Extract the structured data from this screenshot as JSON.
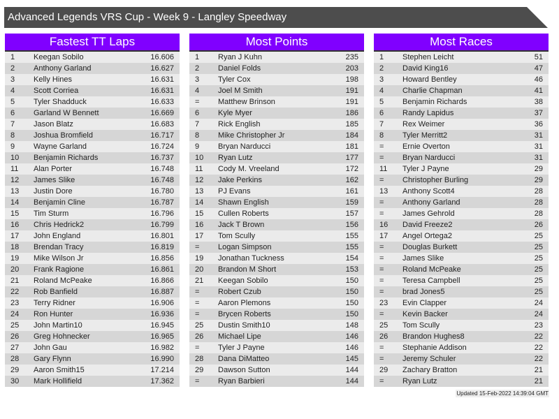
{
  "title": "Advanced Legends VRS Cup - Week 9 - Langley Speedway",
  "colors": {
    "title_bg": "#4d4d4d",
    "header_bg": "#8000ff"
  },
  "tables": [
    {
      "heading": "Fastest TT Laps",
      "rows": [
        [
          "1",
          "Keegan Sobilo",
          "16.606"
        ],
        [
          "2",
          "Anthony Garland",
          "16.627"
        ],
        [
          "3",
          "Kelly Hines",
          "16.631"
        ],
        [
          "4",
          "Scott Corriea",
          "16.631"
        ],
        [
          "5",
          "Tyler Shadduck",
          "16.633"
        ],
        [
          "6",
          "Garland W Bennett",
          "16.669"
        ],
        [
          "7",
          "Jason Blatz",
          "16.683"
        ],
        [
          "8",
          "Joshua Bromfield",
          "16.717"
        ],
        [
          "9",
          "Wayne Garland",
          "16.724"
        ],
        [
          "10",
          "Benjamin Richards",
          "16.737"
        ],
        [
          "11",
          "Alan Porter",
          "16.748"
        ],
        [
          "12",
          "James Slike",
          "16.748"
        ],
        [
          "13",
          "Justin Dore",
          "16.780"
        ],
        [
          "14",
          "Benjamin Cline",
          "16.787"
        ],
        [
          "15",
          "Tim Sturm",
          "16.796"
        ],
        [
          "16",
          "Chris Hedrick2",
          "16.799"
        ],
        [
          "17",
          "John England",
          "16.801"
        ],
        [
          "18",
          "Brendan Tracy",
          "16.819"
        ],
        [
          "19",
          "Mike Wilson Jr",
          "16.856"
        ],
        [
          "20",
          "Frank Ragione",
          "16.861"
        ],
        [
          "21",
          "Roland McPeake",
          "16.866"
        ],
        [
          "22",
          "Rob Banfield",
          "16.887"
        ],
        [
          "23",
          "Terry Ridner",
          "16.906"
        ],
        [
          "24",
          "Ron Hunter",
          "16.936"
        ],
        [
          "25",
          "John Martin10",
          "16.945"
        ],
        [
          "26",
          "Greg Hohnecker",
          "16.965"
        ],
        [
          "27",
          "John Gau",
          "16.982"
        ],
        [
          "28",
          "Gary Flynn",
          "16.990"
        ],
        [
          "29",
          "Aaron Smith15",
          "17.214"
        ],
        [
          "30",
          "Mark Hollifield",
          "17.362"
        ]
      ]
    },
    {
      "heading": "Most Points",
      "rows": [
        [
          "1",
          "Ryan J Kuhn",
          "235"
        ],
        [
          "2",
          "Daniel Folds",
          "203"
        ],
        [
          "3",
          "Tyler Cox",
          "198"
        ],
        [
          "4",
          "Joel M Smith",
          "191"
        ],
        [
          "=",
          "Matthew Brinson",
          "191"
        ],
        [
          "6",
          "Kyle Myer",
          "186"
        ],
        [
          "7",
          "Rick English",
          "185"
        ],
        [
          "8",
          "Mike Christopher Jr",
          "184"
        ],
        [
          "9",
          "Bryan Narducci",
          "181"
        ],
        [
          "10",
          "Ryan Lutz",
          "177"
        ],
        [
          "11",
          "Cody M. Vreeland",
          "172"
        ],
        [
          "12",
          "Jake Perkins",
          "162"
        ],
        [
          "13",
          "PJ Evans",
          "161"
        ],
        [
          "14",
          "Shawn English",
          "159"
        ],
        [
          "15",
          "Cullen Roberts",
          "157"
        ],
        [
          "16",
          "Jack T Brown",
          "156"
        ],
        [
          "17",
          "Tom Scully",
          "155"
        ],
        [
          "=",
          "Logan Simpson",
          "155"
        ],
        [
          "19",
          "Jonathan Tuckness",
          "154"
        ],
        [
          "20",
          "Brandon M Short",
          "153"
        ],
        [
          "21",
          "Keegan Sobilo",
          "150"
        ],
        [
          "=",
          "Robert Czub",
          "150"
        ],
        [
          "=",
          "Aaron Plemons",
          "150"
        ],
        [
          "=",
          "Brycen Roberts",
          "150"
        ],
        [
          "25",
          "Dustin Smith10",
          "148"
        ],
        [
          "26",
          "Michael Lipe",
          "146"
        ],
        [
          "=",
          "Tyler J Payne",
          "146"
        ],
        [
          "28",
          "Dana DiMatteo",
          "145"
        ],
        [
          "29",
          "Dawson Sutton",
          "144"
        ],
        [
          "=",
          "Ryan Barbieri",
          "144"
        ]
      ]
    },
    {
      "heading": "Most Races",
      "rows": [
        [
          "1",
          "Stephen Leicht",
          "51"
        ],
        [
          "2",
          "David King16",
          "47"
        ],
        [
          "3",
          "Howard Bentley",
          "46"
        ],
        [
          "4",
          "Charlie Chapman",
          "41"
        ],
        [
          "5",
          "Benjamin Richards",
          "38"
        ],
        [
          "6",
          "Randy Lapidus",
          "37"
        ],
        [
          "7",
          "Rex Weimer",
          "36"
        ],
        [
          "8",
          "Tyler Merritt2",
          "31"
        ],
        [
          "=",
          "Ernie Overton",
          "31"
        ],
        [
          "=",
          "Bryan Narducci",
          "31"
        ],
        [
          "11",
          "Tyler J Payne",
          "29"
        ],
        [
          "=",
          "Christopher Burling",
          "29"
        ],
        [
          "13",
          "Anthony Scott4",
          "28"
        ],
        [
          "=",
          "Anthony Garland",
          "28"
        ],
        [
          "=",
          "James Gehrold",
          "28"
        ],
        [
          "16",
          "David Freeze2",
          "26"
        ],
        [
          "17",
          "Angel Ortega2",
          "25"
        ],
        [
          "=",
          "Douglas Burkett",
          "25"
        ],
        [
          "=",
          "James Slike",
          "25"
        ],
        [
          "=",
          "Roland McPeake",
          "25"
        ],
        [
          "=",
          "Teresa Campbell",
          "25"
        ],
        [
          "=",
          "brad Jones5",
          "25"
        ],
        [
          "23",
          "Evin Clapper",
          "24"
        ],
        [
          "=",
          "Kevin Backer",
          "24"
        ],
        [
          "25",
          "Tom Scully",
          "23"
        ],
        [
          "26",
          "Brandon Hughes8",
          "22"
        ],
        [
          "=",
          "Stephanie Addison",
          "22"
        ],
        [
          "=",
          "Jeremy Schuler",
          "22"
        ],
        [
          "29",
          "Zachary Bratton",
          "21"
        ],
        [
          "=",
          "Ryan Lutz",
          "21"
        ]
      ]
    }
  ],
  "footer": "Updated 15-Feb-2022 14:39:04 GMT"
}
